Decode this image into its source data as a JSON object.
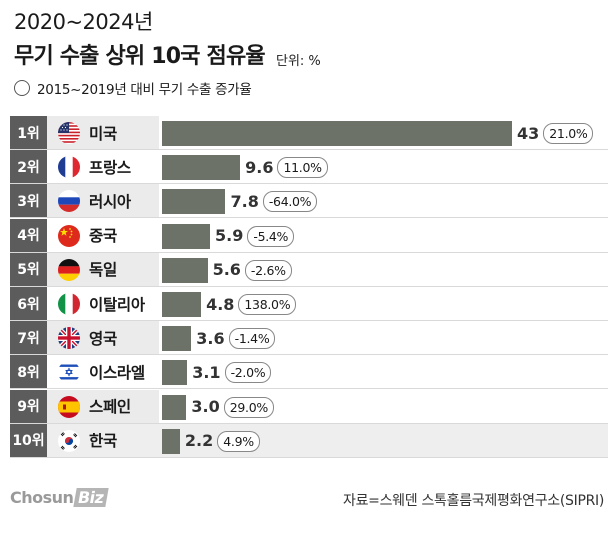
{
  "header": {
    "title_line1": "2020~2024년",
    "title_line2": "무기 수출 상위 10국 점유율",
    "unit": "단위: %",
    "legend_label": "2015~2019년 대비 무기 수출 증가율"
  },
  "chart_data": {
    "type": "bar",
    "orientation": "horizontal",
    "title": "2020~2024년 무기 수출 상위 10국 점유율",
    "unit": "%",
    "categories": [
      "미국",
      "프랑스",
      "러시아",
      "중국",
      "독일",
      "이탈리아",
      "영국",
      "이스라엘",
      "스페인",
      "한국"
    ],
    "ranks": [
      "1위",
      "2위",
      "3위",
      "4위",
      "5위",
      "6위",
      "7위",
      "8위",
      "9위",
      "10위"
    ],
    "value_labels": [
      "43",
      "9.6",
      "7.8",
      "5.9",
      "5.6",
      "4.8",
      "3.6",
      "3.1",
      "3.0",
      "2.2"
    ],
    "values": [
      43,
      9.6,
      7.8,
      5.9,
      5.6,
      4.8,
      3.6,
      3.1,
      3.0,
      2.2
    ],
    "growth": [
      "21.0%",
      "11.0%",
      "-64.0%",
      "-5.4%",
      "-2.6%",
      "138.0%",
      "-1.4%",
      "-2.0%",
      "29.0%",
      "4.9%"
    ],
    "growth_values": [
      21.0,
      11.0,
      -64.0,
      -5.4,
      -2.6,
      138.0,
      -1.4,
      -2.0,
      29.0,
      4.9
    ],
    "flags": [
      "us-flag-icon",
      "france-flag-icon",
      "russia-flag-icon",
      "china-flag-icon",
      "germany-flag-icon",
      "italy-flag-icon",
      "uk-flag-icon",
      "israel-flag-icon",
      "spain-flag-icon",
      "korea-flag-icon"
    ],
    "highlight": "한국",
    "bar_color": "#6d7268"
  },
  "footer": {
    "logo_text": "Chosun",
    "logo_biz": "Biz",
    "source": "자료=스웨덴 스톡홀름국제평화연구소(SIPRI)"
  }
}
